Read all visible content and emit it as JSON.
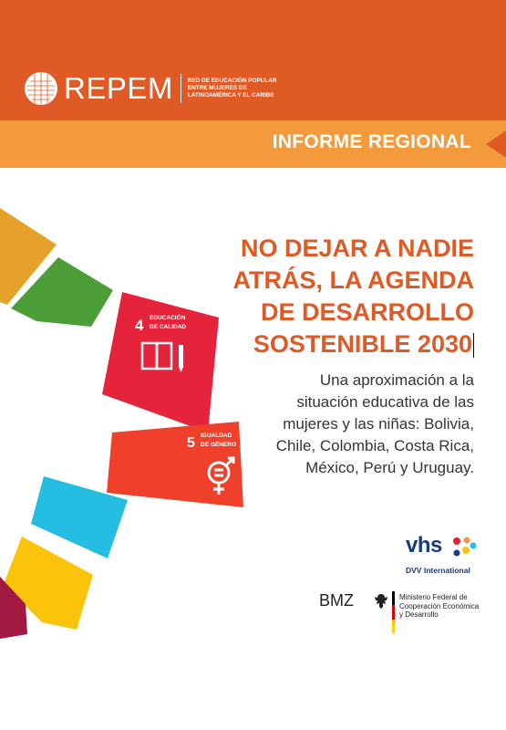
{
  "header": {
    "logo_name": "REPEM",
    "logo_sub_line1": "RED DE EDUCACIÓN POPULAR",
    "logo_sub_line2": "ENTRE MUJERES DE",
    "logo_sub_line3": "LATINOAMÉRICA Y EL CARIBE"
  },
  "banner": {
    "label": "INFORME REGIONAL"
  },
  "title": {
    "line1": "NO DEJAR A NADIE",
    "line2": "ATRÁS, LA AGENDA",
    "line3": "DE DESARROLLO",
    "line4": "SOSTENIBLE 2030"
  },
  "subtitle": {
    "line1": "Una aproximación a la",
    "line2": "situación educativa de las",
    "line3": "mujeres y las niñas: Bolivia,",
    "line4": "Chile, Colombia, Costa Rica,",
    "line5": "México, Perú y Uruguay."
  },
  "sdg": {
    "goal4_number": "4",
    "goal4_line1": "EDUCACIÓN",
    "goal4_line2": "DE CALIDAD",
    "goal5_number": "5",
    "goal5_line1": "IGUALDAD",
    "goal5_line2": "DE GÉNERO"
  },
  "partners": {
    "vhs_name": "vhs",
    "vhs_sub": "DVV International",
    "bmz_name": "BMZ",
    "ministry_line1": "Ministerio Federal de",
    "ministry_line2": "Cooperación Económica",
    "ministry_line3": "y Desarrollo"
  },
  "colors": {
    "brand_orange": "#e05a26",
    "light_orange": "#f39a3c",
    "sdg4_red": "#e5243b",
    "sdg5_red": "#ef402b",
    "sdg_green": "#4c9f38",
    "sdg_yellow": "#e5a129",
    "sdg_cyan": "#26bde2",
    "sdg_gold": "#fcc30b",
    "sdg_maroon": "#a21942"
  },
  "icons": [
    "repem-logo-icon",
    "book-icon",
    "pencil-icon",
    "gender-equality-icon",
    "vhs-dots-icon",
    "eagle-icon"
  ]
}
